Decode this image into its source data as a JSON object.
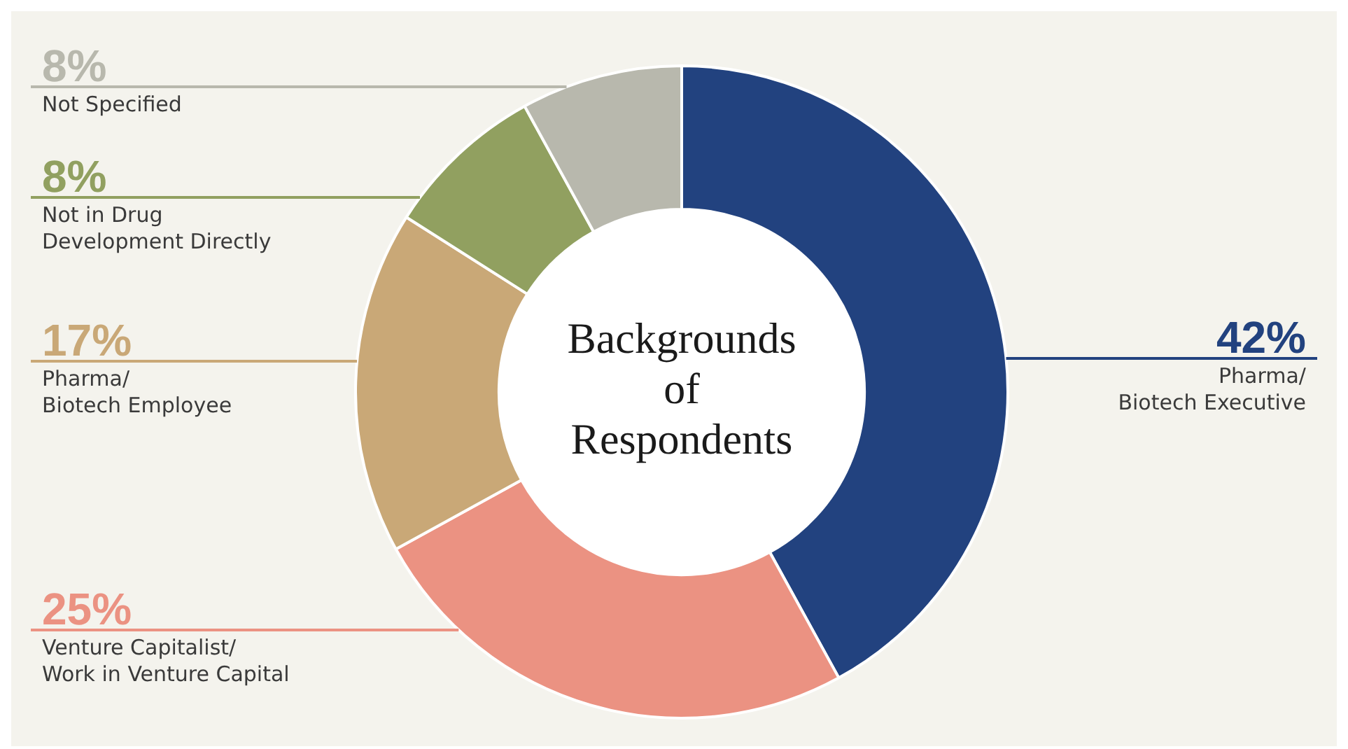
{
  "chart_data": {
    "type": "donut",
    "title": "Backgrounds of Respondents",
    "categories": [
      "Pharma/\nBiotech Executive",
      "Venture Capitalist/\nWork in Venture Capital",
      "Pharma/\nBiotech Employee",
      "Not in Drug\nDevelopment Directly",
      "Not Specified"
    ],
    "values": [
      42,
      25,
      17,
      8,
      8
    ],
    "colors": [
      "#22427f",
      "#eb9282",
      "#c9a877",
      "#91a060",
      "#b8b8ad"
    ],
    "value_labels": [
      "42%",
      "25%",
      "17%",
      "8%",
      "8%"
    ],
    "legend": false
  }
}
